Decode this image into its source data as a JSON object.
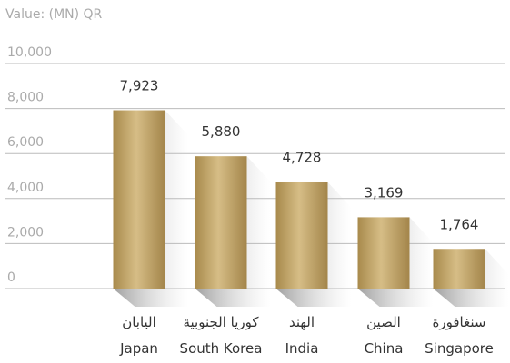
{
  "chart_data": {
    "type": "bar",
    "y_axis_label": "Value: (MN) QR",
    "categories": [
      "Japan",
      "South Korea",
      "India",
      "China",
      "Singapore"
    ],
    "categories_ar": [
      "اليابان",
      "كوريا الجنوبية",
      "الهند",
      "الصين",
      "سنغافورة"
    ],
    "values": [
      7923,
      5880,
      4728,
      3169,
      1764
    ],
    "value_labels": [
      "7,923",
      "5,880",
      "4,728",
      "3,169",
      "1,764"
    ],
    "color": "#b99a5b",
    "ylim": [
      0,
      10000
    ],
    "yticks": [
      0,
      {
        "value": 2000,
        "label": "2,000"
      },
      {
        "value": 4000,
        "label": "4,000"
      },
      {
        "value": 6000,
        "label": "6,000"
      },
      {
        "value": 8000,
        "label": "8,000"
      },
      {
        "value": 10000,
        "label": "10,000"
      }
    ],
    "grid": true
  }
}
